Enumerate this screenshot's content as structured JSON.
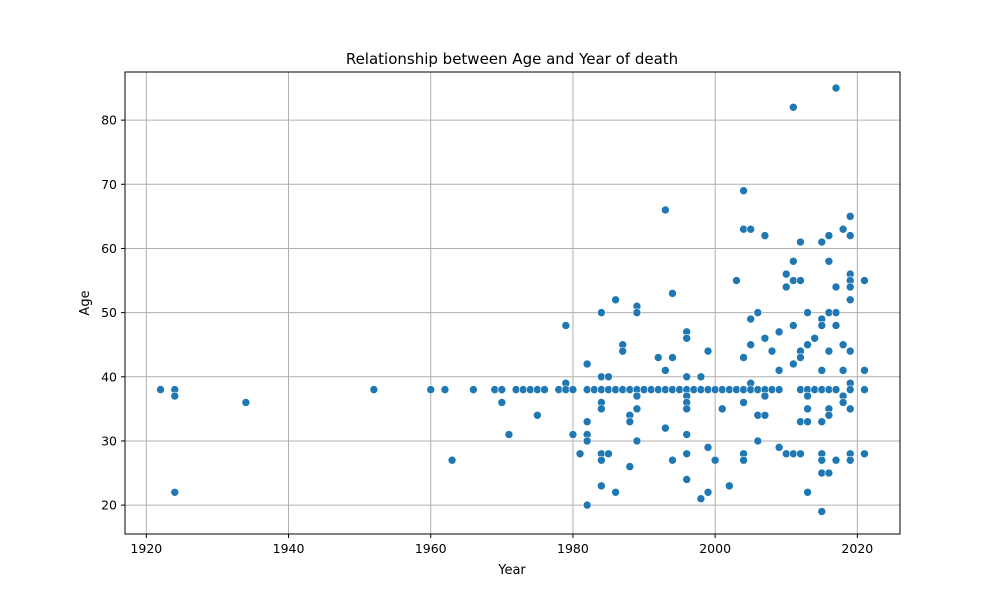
{
  "chart_data": {
    "type": "scatter",
    "title": "Relationship between Age and Year of death",
    "xlabel": "Year",
    "ylabel": "Age",
    "xlim": [
      1917,
      2026
    ],
    "ylim": [
      15.5,
      87.5
    ],
    "xticks": [
      1920,
      1940,
      1960,
      1980,
      2000,
      2020
    ],
    "yticks": [
      20,
      30,
      40,
      50,
      60,
      70,
      80
    ],
    "grid": true,
    "point_color": "#1f77b4",
    "series": [
      {
        "points": [
          [
            1922,
            38
          ],
          [
            1924,
            38
          ],
          [
            1924,
            37
          ],
          [
            1924,
            22
          ],
          [
            1934,
            36
          ],
          [
            1952,
            38
          ],
          [
            1960,
            38
          ],
          [
            1962,
            38
          ],
          [
            1963,
            27
          ],
          [
            1966,
            38
          ],
          [
            1969,
            38
          ],
          [
            1970,
            38
          ],
          [
            1970,
            36
          ],
          [
            1971,
            31
          ],
          [
            1972,
            38
          ],
          [
            1973,
            38
          ],
          [
            1974,
            38
          ],
          [
            1975,
            38
          ],
          [
            1975,
            34
          ],
          [
            1976,
            38
          ],
          [
            1978,
            38
          ],
          [
            1979,
            48
          ],
          [
            1979,
            39
          ],
          [
            1979,
            38
          ],
          [
            1980,
            38
          ],
          [
            1980,
            31
          ],
          [
            1981,
            28
          ],
          [
            1982,
            42
          ],
          [
            1982,
            38
          ],
          [
            1982,
            33
          ],
          [
            1982,
            31
          ],
          [
            1982,
            30
          ],
          [
            1982,
            20
          ],
          [
            1983,
            38
          ],
          [
            1984,
            50
          ],
          [
            1984,
            40
          ],
          [
            1984,
            38
          ],
          [
            1984,
            36
          ],
          [
            1984,
            35
          ],
          [
            1984,
            28
          ],
          [
            1984,
            27
          ],
          [
            1984,
            23
          ],
          [
            1985,
            40
          ],
          [
            1985,
            38
          ],
          [
            1985,
            28
          ],
          [
            1986,
            52
          ],
          [
            1986,
            38
          ],
          [
            1986,
            22
          ],
          [
            1987,
            45
          ],
          [
            1987,
            44
          ],
          [
            1987,
            38
          ],
          [
            1988,
            38
          ],
          [
            1988,
            34
          ],
          [
            1988,
            33
          ],
          [
            1988,
            26
          ],
          [
            1989,
            51
          ],
          [
            1989,
            50
          ],
          [
            1989,
            38
          ],
          [
            1989,
            37
          ],
          [
            1989,
            35
          ],
          [
            1989,
            30
          ],
          [
            1990,
            38
          ],
          [
            1991,
            38
          ],
          [
            1992,
            43
          ],
          [
            1992,
            38
          ],
          [
            1993,
            66
          ],
          [
            1993,
            41
          ],
          [
            1993,
            38
          ],
          [
            1993,
            32
          ],
          [
            1994,
            53
          ],
          [
            1994,
            43
          ],
          [
            1994,
            38
          ],
          [
            1994,
            27
          ],
          [
            1995,
            38
          ],
          [
            1996,
            47
          ],
          [
            1996,
            46
          ],
          [
            1996,
            40
          ],
          [
            1996,
            38
          ],
          [
            1996,
            37
          ],
          [
            1996,
            36
          ],
          [
            1996,
            35
          ],
          [
            1996,
            31
          ],
          [
            1996,
            28
          ],
          [
            1996,
            24
          ],
          [
            1997,
            38
          ],
          [
            1998,
            40
          ],
          [
            1998,
            38
          ],
          [
            1998,
            21
          ],
          [
            1999,
            44
          ],
          [
            1999,
            38
          ],
          [
            1999,
            29
          ],
          [
            1999,
            22
          ],
          [
            2000,
            38
          ],
          [
            2000,
            27
          ],
          [
            2001,
            38
          ],
          [
            2001,
            35
          ],
          [
            2002,
            38
          ],
          [
            2002,
            23
          ],
          [
            2003,
            55
          ],
          [
            2003,
            38
          ],
          [
            2004,
            69
          ],
          [
            2004,
            63
          ],
          [
            2004,
            43
          ],
          [
            2004,
            38
          ],
          [
            2004,
            36
          ],
          [
            2004,
            28
          ],
          [
            2004,
            27
          ],
          [
            2005,
            63
          ],
          [
            2005,
            49
          ],
          [
            2005,
            45
          ],
          [
            2005,
            39
          ],
          [
            2005,
            38
          ],
          [
            2006,
            50
          ],
          [
            2006,
            38
          ],
          [
            2006,
            34
          ],
          [
            2006,
            30
          ],
          [
            2007,
            62
          ],
          [
            2007,
            46
          ],
          [
            2007,
            38
          ],
          [
            2007,
            37
          ],
          [
            2007,
            34
          ],
          [
            2008,
            44
          ],
          [
            2008,
            38
          ],
          [
            2009,
            47
          ],
          [
            2009,
            41
          ],
          [
            2009,
            38
          ],
          [
            2009,
            29
          ],
          [
            2010,
            56
          ],
          [
            2010,
            54
          ],
          [
            2010,
            28
          ],
          [
            2011,
            82
          ],
          [
            2011,
            58
          ],
          [
            2011,
            55
          ],
          [
            2011,
            48
          ],
          [
            2011,
            42
          ],
          [
            2011,
            28
          ],
          [
            2012,
            61
          ],
          [
            2012,
            55
          ],
          [
            2012,
            44
          ],
          [
            2012,
            43
          ],
          [
            2012,
            38
          ],
          [
            2012,
            33
          ],
          [
            2012,
            28
          ],
          [
            2013,
            50
          ],
          [
            2013,
            45
          ],
          [
            2013,
            38
          ],
          [
            2013,
            37
          ],
          [
            2013,
            35
          ],
          [
            2013,
            33
          ],
          [
            2013,
            22
          ],
          [
            2014,
            46
          ],
          [
            2014,
            38
          ],
          [
            2015,
            61
          ],
          [
            2015,
            49
          ],
          [
            2015,
            48
          ],
          [
            2015,
            41
          ],
          [
            2015,
            38
          ],
          [
            2015,
            33
          ],
          [
            2015,
            28
          ],
          [
            2015,
            27
          ],
          [
            2015,
            25
          ],
          [
            2015,
            19
          ],
          [
            2016,
            62
          ],
          [
            2016,
            58
          ],
          [
            2016,
            50
          ],
          [
            2016,
            44
          ],
          [
            2016,
            38
          ],
          [
            2016,
            35
          ],
          [
            2016,
            34
          ],
          [
            2016,
            25
          ],
          [
            2017,
            85
          ],
          [
            2017,
            54
          ],
          [
            2017,
            50
          ],
          [
            2017,
            48
          ],
          [
            2017,
            38
          ],
          [
            2017,
            27
          ],
          [
            2018,
            63
          ],
          [
            2018,
            45
          ],
          [
            2018,
            41
          ],
          [
            2018,
            37
          ],
          [
            2018,
            36
          ],
          [
            2019,
            65
          ],
          [
            2019,
            62
          ],
          [
            2019,
            56
          ],
          [
            2019,
            55
          ],
          [
            2019,
            54
          ],
          [
            2019,
            52
          ],
          [
            2019,
            44
          ],
          [
            2019,
            39
          ],
          [
            2019,
            38
          ],
          [
            2019,
            35
          ],
          [
            2019,
            28
          ],
          [
            2019,
            27
          ],
          [
            2021,
            55
          ],
          [
            2021,
            41
          ],
          [
            2021,
            38
          ],
          [
            2021,
            28
          ]
        ]
      }
    ]
  }
}
